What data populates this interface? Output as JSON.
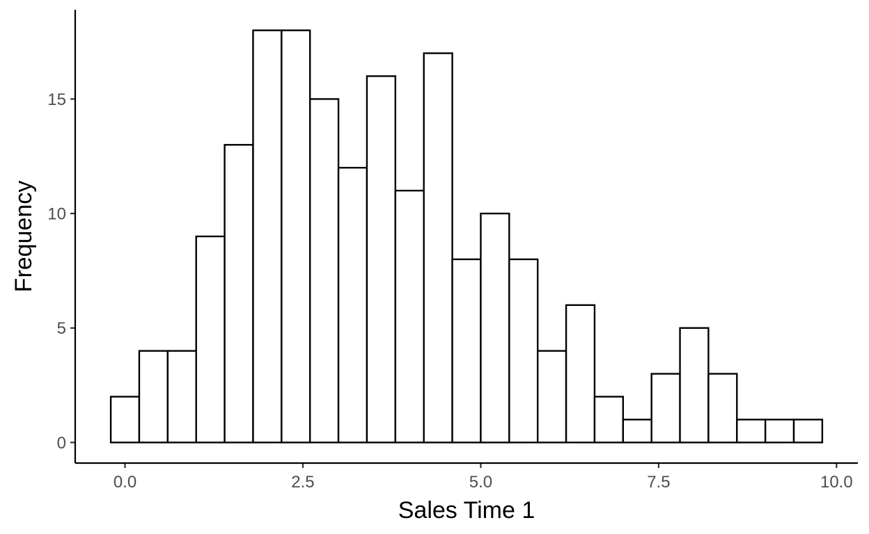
{
  "chart_data": {
    "type": "bar",
    "subtype": "histogram",
    "xlabel": "Sales Time 1",
    "ylabel": "Frequency",
    "bin_width": 0.4,
    "bins": [
      {
        "x0": -0.2,
        "x1": 0.2,
        "count": 2
      },
      {
        "x0": 0.2,
        "x1": 0.6,
        "count": 4
      },
      {
        "x0": 0.6,
        "x1": 1.0,
        "count": 4
      },
      {
        "x0": 1.0,
        "x1": 1.4,
        "count": 9
      },
      {
        "x0": 1.4,
        "x1": 1.8,
        "count": 13
      },
      {
        "x0": 1.8,
        "x1": 2.2,
        "count": 18
      },
      {
        "x0": 2.2,
        "x1": 2.6,
        "count": 18
      },
      {
        "x0": 2.6,
        "x1": 3.0,
        "count": 15
      },
      {
        "x0": 3.0,
        "x1": 3.4,
        "count": 12
      },
      {
        "x0": 3.4,
        "x1": 3.8,
        "count": 16
      },
      {
        "x0": 3.8,
        "x1": 4.2,
        "count": 11
      },
      {
        "x0": 4.2,
        "x1": 4.6,
        "count": 17
      },
      {
        "x0": 4.6,
        "x1": 5.0,
        "count": 8
      },
      {
        "x0": 5.0,
        "x1": 5.4,
        "count": 10
      },
      {
        "x0": 5.4,
        "x1": 5.8,
        "count": 8
      },
      {
        "x0": 5.8,
        "x1": 6.2,
        "count": 4
      },
      {
        "x0": 6.2,
        "x1": 6.6,
        "count": 6
      },
      {
        "x0": 6.6,
        "x1": 7.0,
        "count": 2
      },
      {
        "x0": 7.0,
        "x1": 7.4,
        "count": 1
      },
      {
        "x0": 7.4,
        "x1": 7.8,
        "count": 3
      },
      {
        "x0": 7.8,
        "x1": 8.2,
        "count": 5
      },
      {
        "x0": 8.2,
        "x1": 8.6,
        "count": 3
      },
      {
        "x0": 8.6,
        "x1": 9.0,
        "count": 1
      },
      {
        "x0": 9.0,
        "x1": 9.4,
        "count": 1
      },
      {
        "x0": 9.4,
        "x1": 9.8,
        "count": 1
      }
    ],
    "xlim": [
      -0.7,
      10.3
    ],
    "ylim": [
      -0.9,
      18.9
    ],
    "xticks": [
      0.0,
      2.5,
      5.0,
      7.5,
      10.0
    ],
    "xtick_labels": [
      "0.0",
      "2.5",
      "5.0",
      "7.5",
      "10.0"
    ],
    "yticks": [
      0,
      5,
      10,
      15
    ],
    "ytick_labels": [
      "0",
      "5",
      "10",
      "15"
    ],
    "grid": false,
    "legend": "none",
    "colors": {
      "bar_fill": "#ffffff",
      "bar_stroke": "#000000",
      "axis": "#000000",
      "tick_label": "#4d4d4d"
    }
  }
}
